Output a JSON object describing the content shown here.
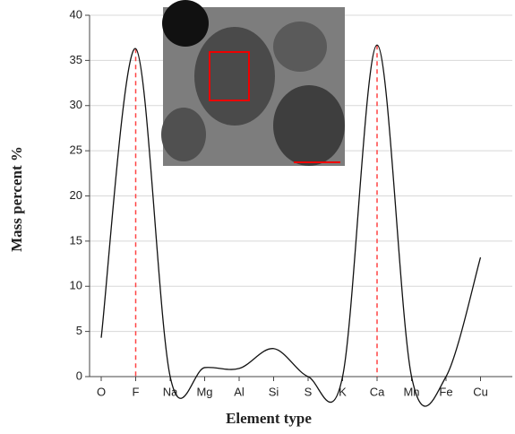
{
  "chart_data": {
    "type": "line",
    "x_label": "Element type",
    "y_label": "Mass percent %",
    "categories": [
      "O",
      "F",
      "Na",
      "Mg",
      "Al",
      "Si",
      "S",
      "K",
      "Ca",
      "Mn",
      "Fe",
      "Cu"
    ],
    "values": [
      4.3,
      36.3,
      0,
      1.0,
      0.9,
      3.1,
      0,
      0,
      36.7,
      0,
      0,
      13.2
    ],
    "color": "#111111",
    "ylim": [
      0,
      40
    ],
    "yticks": [
      0,
      5,
      10,
      15,
      20,
      25,
      30,
      35,
      40
    ],
    "grid": true
  }
}
